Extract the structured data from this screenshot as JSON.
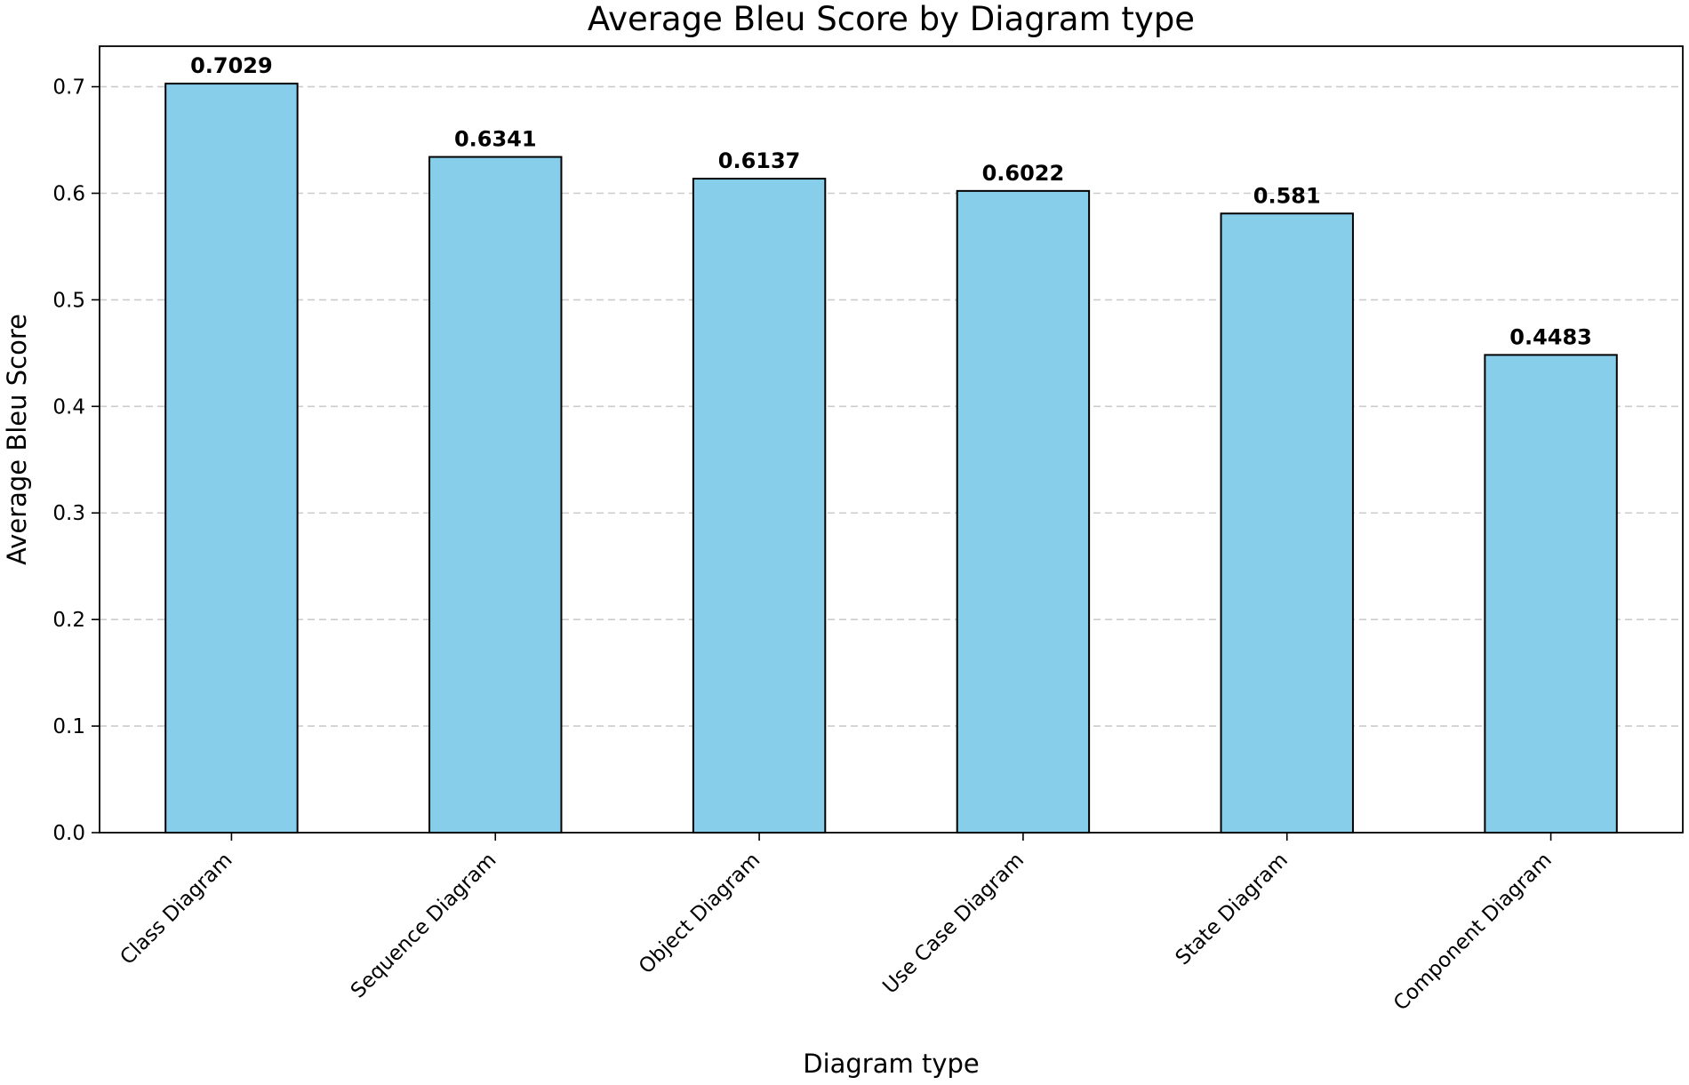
{
  "chart_data": {
    "type": "bar",
    "title": "Average Bleu Score by Diagram type",
    "xlabel": "Diagram type",
    "ylabel": "Average Bleu Score",
    "categories": [
      "Class Diagram",
      "Sequence Diagram",
      "Object Diagram",
      "Use Case Diagram",
      "State Diagram",
      "Component Diagram"
    ],
    "values": [
      0.7029,
      0.6341,
      0.6137,
      0.6022,
      0.581,
      0.4483
    ],
    "value_labels": [
      "0.7029",
      "0.6341",
      "0.6137",
      "0.6022",
      "0.581",
      "0.4483"
    ],
    "ylim": [
      0,
      0.738
    ],
    "yticks": [
      0.0,
      0.1,
      0.2,
      0.3,
      0.4,
      0.5,
      0.6,
      0.7
    ],
    "ytick_labels": [
      "0.0",
      "0.1",
      "0.2",
      "0.3",
      "0.4",
      "0.5",
      "0.6",
      "0.7"
    ],
    "grid": "horizontal dashed",
    "legend": "none",
    "bar_color": "#87CEEB",
    "bar_edge_color": "#000000",
    "grid_color": "#cccccc"
  }
}
